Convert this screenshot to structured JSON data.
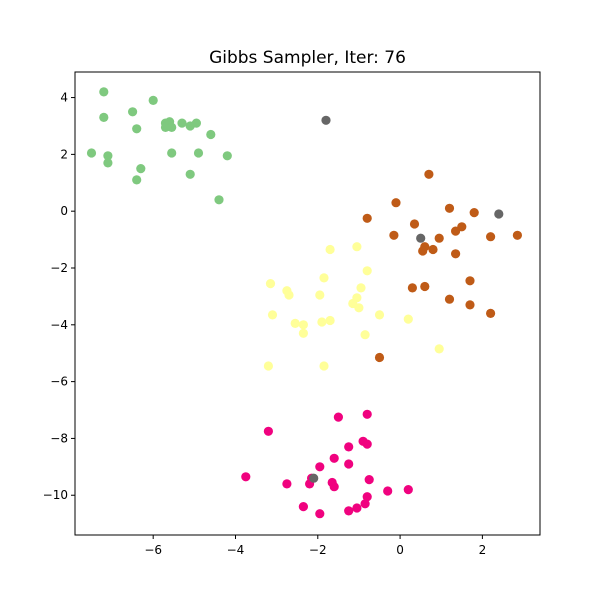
{
  "chart_data": {
    "type": "scatter",
    "title": "Gibbs Sampler, Iter: 76",
    "xlabel": "",
    "ylabel": "",
    "xlim": [
      -7.9,
      3.4
    ],
    "ylim": [
      -11.4,
      4.9
    ],
    "xticks": [
      -6,
      -4,
      -2,
      0,
      2
    ],
    "yticks": [
      4,
      2,
      0,
      -2,
      -4,
      -6,
      -8,
      -10
    ],
    "xtick_labels": [
      "−6",
      "−4",
      "−2",
      "0",
      "2"
    ],
    "ytick_labels": [
      "4",
      "2",
      "0",
      "−2",
      "−4",
      "−6",
      "−8",
      "−10"
    ],
    "grid": false,
    "legend": "none",
    "series": [
      {
        "color": "#7fc97f",
        "points": [
          [
            -7.2,
            4.2
          ],
          [
            -7.2,
            3.3
          ],
          [
            -6.5,
            3.5
          ],
          [
            -6.0,
            3.9
          ],
          [
            -5.7,
            3.1
          ],
          [
            -5.6,
            3.15
          ],
          [
            -5.7,
            2.95
          ],
          [
            -5.55,
            2.95
          ],
          [
            -5.3,
            3.1
          ],
          [
            -5.1,
            3.0
          ],
          [
            -4.95,
            3.1
          ],
          [
            -4.6,
            2.7
          ],
          [
            -6.4,
            2.9
          ],
          [
            -7.5,
            2.05
          ],
          [
            -7.1,
            1.95
          ],
          [
            -7.1,
            1.7
          ],
          [
            -5.55,
            2.05
          ],
          [
            -4.9,
            2.05
          ],
          [
            -4.2,
            1.95
          ],
          [
            -6.3,
            1.5
          ],
          [
            -6.4,
            1.1
          ],
          [
            -5.1,
            1.3
          ],
          [
            -4.4,
            0.4
          ]
        ]
      },
      {
        "color": "#bf5b17",
        "points": [
          [
            0.7,
            1.3
          ],
          [
            -0.1,
            0.3
          ],
          [
            1.2,
            0.1
          ],
          [
            1.8,
            -0.05
          ],
          [
            -0.8,
            -0.25
          ],
          [
            0.35,
            -0.45
          ],
          [
            1.5,
            -0.55
          ],
          [
            1.35,
            -0.7
          ],
          [
            -0.15,
            -0.85
          ],
          [
            0.95,
            -0.95
          ],
          [
            2.2,
            -0.9
          ],
          [
            2.85,
            -0.85
          ],
          [
            0.6,
            -1.25
          ],
          [
            0.55,
            -1.4
          ],
          [
            0.8,
            -1.35
          ],
          [
            1.35,
            -1.5
          ],
          [
            1.7,
            -2.45
          ],
          [
            0.3,
            -2.7
          ],
          [
            0.6,
            -2.65
          ],
          [
            1.2,
            -3.1
          ],
          [
            1.7,
            -3.3
          ],
          [
            2.2,
            -3.6
          ],
          [
            -0.5,
            -5.15
          ]
        ]
      },
      {
        "color": "#ffff99",
        "points": [
          [
            -1.7,
            -1.35
          ],
          [
            -1.05,
            -1.25
          ],
          [
            -0.8,
            -2.1
          ],
          [
            -1.85,
            -2.35
          ],
          [
            -3.15,
            -2.55
          ],
          [
            -2.75,
            -2.8
          ],
          [
            -2.7,
            -2.95
          ],
          [
            -1.95,
            -2.95
          ],
          [
            -0.95,
            -2.7
          ],
          [
            -1.05,
            -3.05
          ],
          [
            -1.15,
            -3.25
          ],
          [
            -1.0,
            -3.4
          ],
          [
            -0.5,
            -3.65
          ],
          [
            -3.1,
            -3.65
          ],
          [
            0.2,
            -3.8
          ],
          [
            -2.55,
            -3.95
          ],
          [
            -2.35,
            -4.0
          ],
          [
            -1.9,
            -3.9
          ],
          [
            -1.7,
            -3.85
          ],
          [
            -2.35,
            -4.3
          ],
          [
            -0.85,
            -4.35
          ],
          [
            0.95,
            -4.85
          ],
          [
            -3.2,
            -5.45
          ],
          [
            -1.85,
            -5.45
          ]
        ]
      },
      {
        "color": "#f0027f",
        "points": [
          [
            -0.8,
            -7.15
          ],
          [
            -1.5,
            -7.25
          ],
          [
            -3.2,
            -7.75
          ],
          [
            -1.25,
            -8.3
          ],
          [
            -0.9,
            -8.1
          ],
          [
            -0.8,
            -8.2
          ],
          [
            -1.6,
            -8.7
          ],
          [
            -1.25,
            -8.9
          ],
          [
            -1.95,
            -9.0
          ],
          [
            -3.75,
            -9.35
          ],
          [
            -0.75,
            -9.45
          ],
          [
            -2.75,
            -9.6
          ],
          [
            -2.15,
            -9.4
          ],
          [
            -2.2,
            -9.6
          ],
          [
            -1.65,
            -9.55
          ],
          [
            -1.6,
            -9.7
          ],
          [
            -0.3,
            -9.85
          ],
          [
            0.2,
            -9.8
          ],
          [
            -0.8,
            -10.05
          ],
          [
            -0.85,
            -10.3
          ],
          [
            -2.35,
            -10.4
          ],
          [
            -1.05,
            -10.45
          ],
          [
            -1.95,
            -10.65
          ],
          [
            -1.25,
            -10.55
          ]
        ]
      },
      {
        "color": "#666666",
        "points": [
          [
            -1.8,
            3.2
          ],
          [
            2.4,
            -0.1
          ],
          [
            0.5,
            -0.95
          ],
          [
            -2.1,
            -9.4
          ]
        ]
      }
    ]
  }
}
